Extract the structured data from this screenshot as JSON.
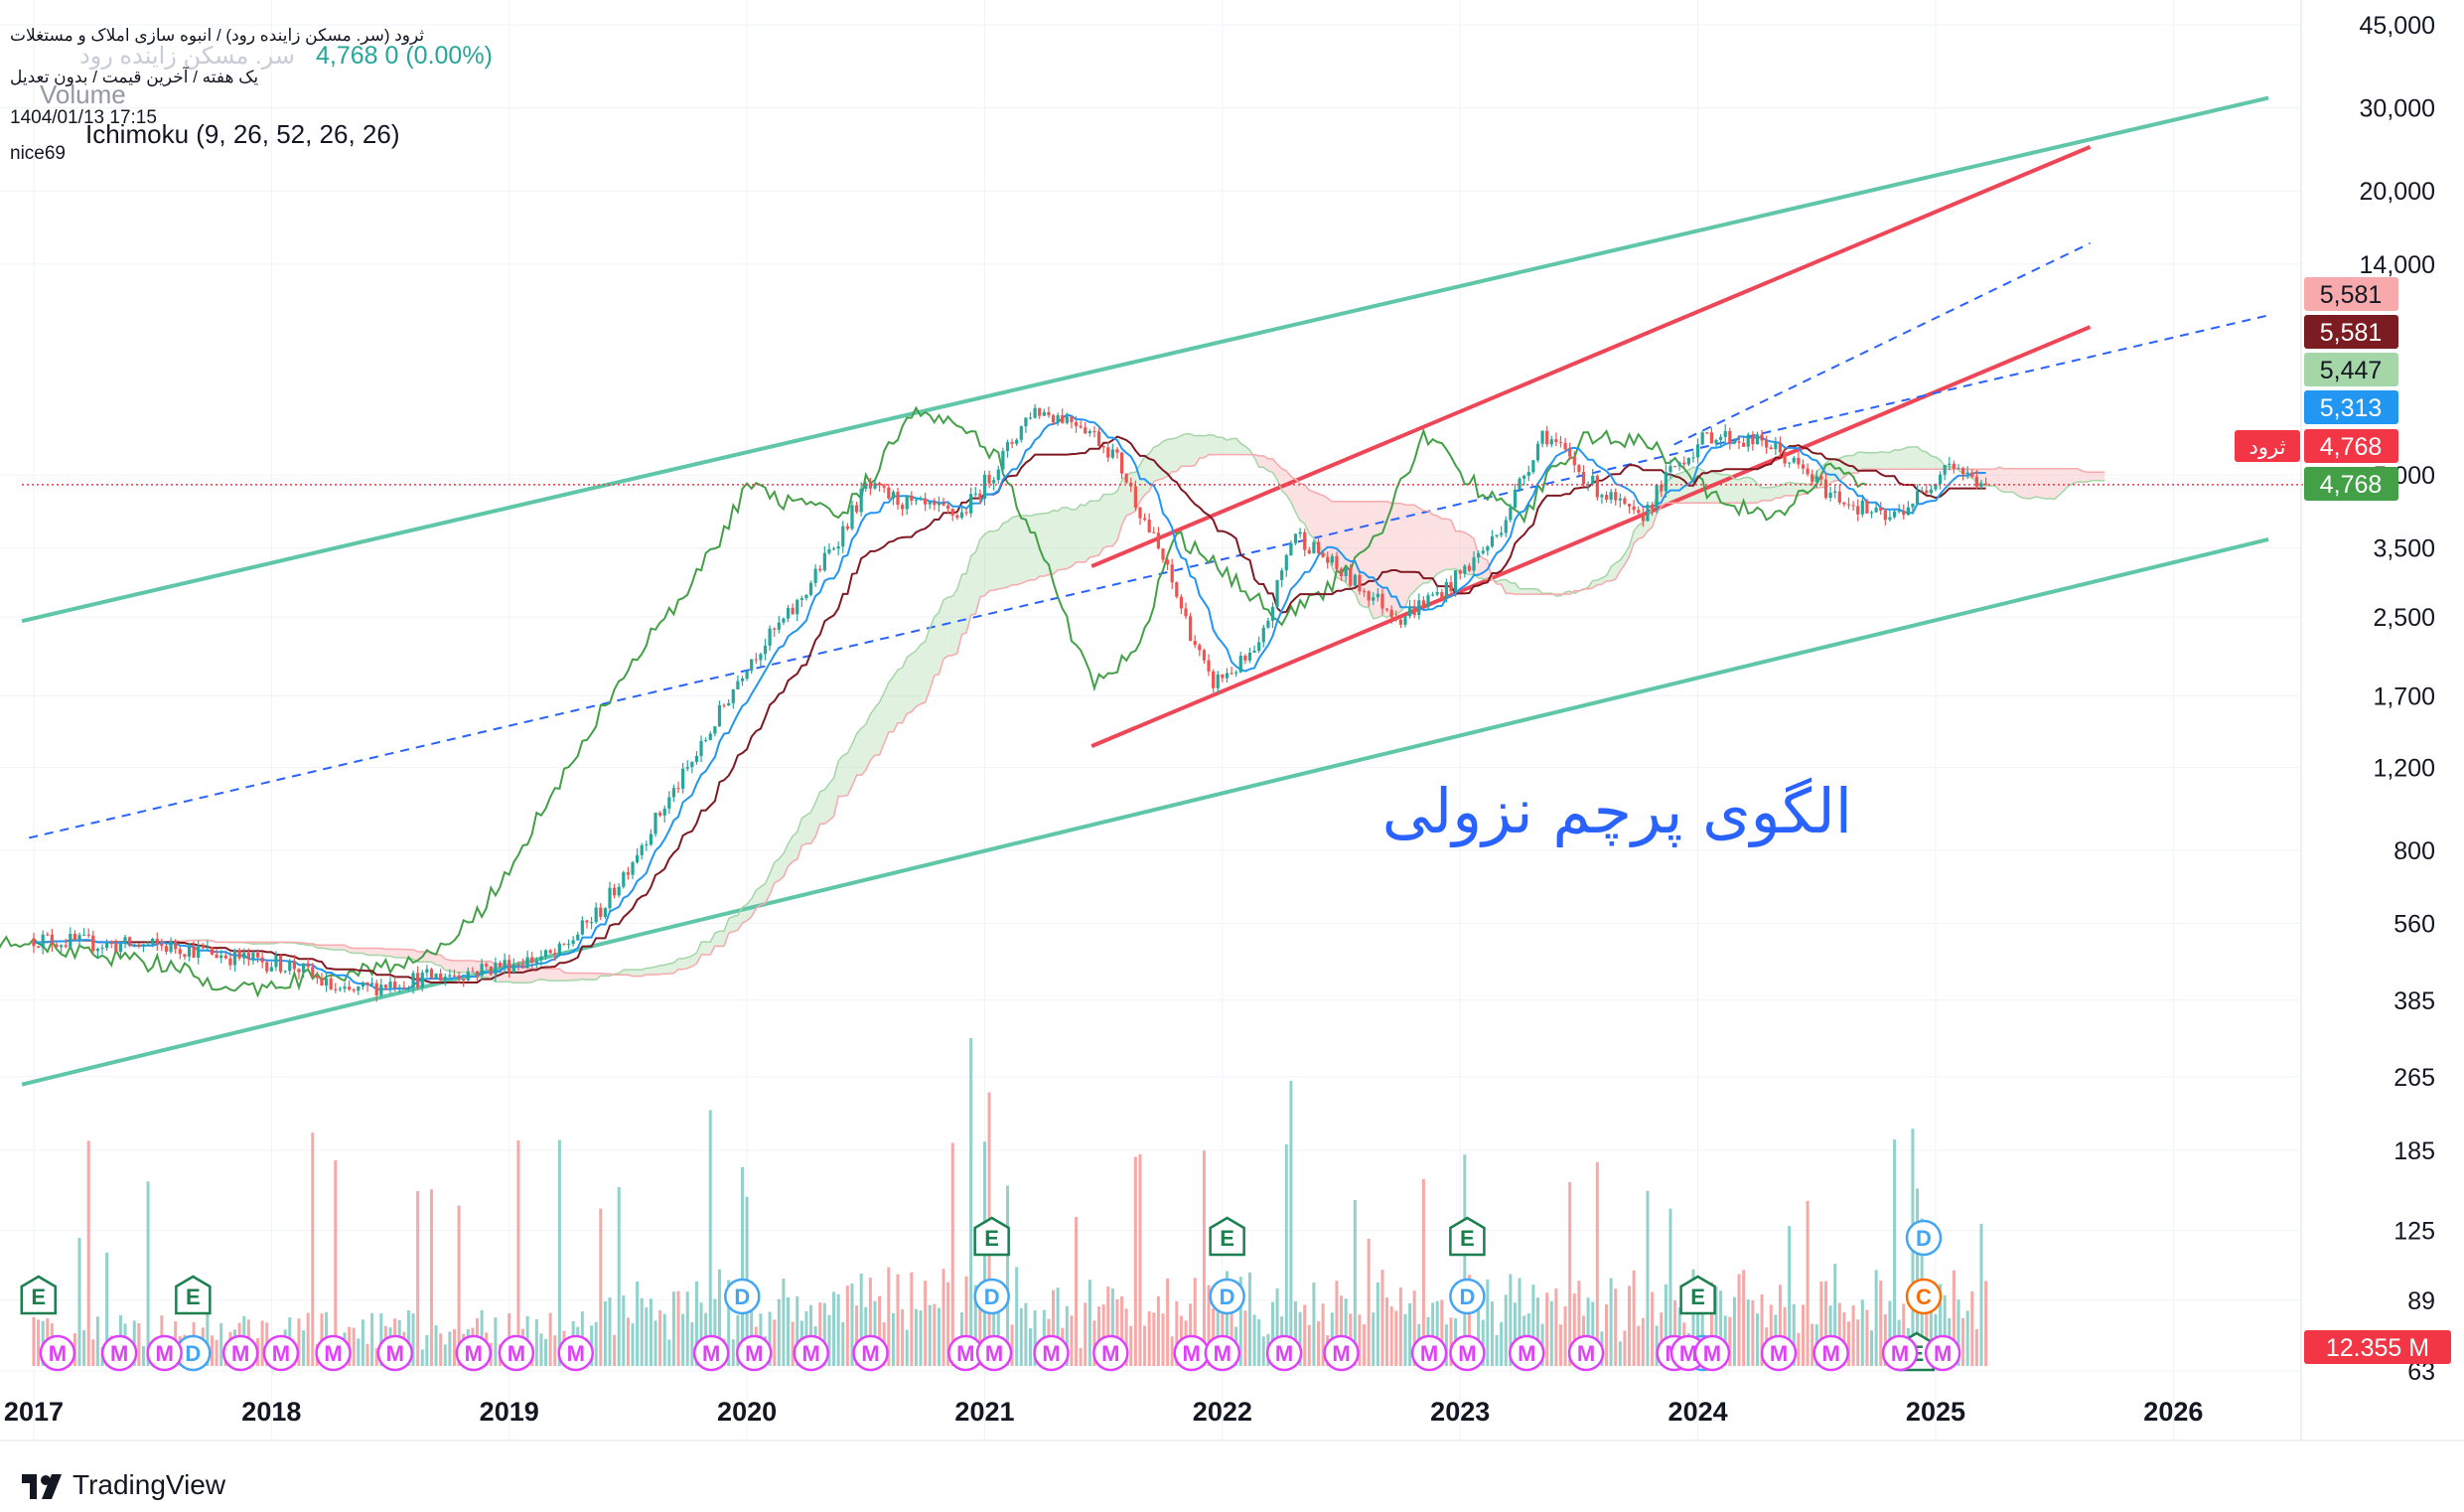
{
  "header": {
    "symbol_line": "ثرود (سر. مسکن زاینده رود) / انبوه سازی املاک و مستغلات",
    "ghost_symbol": "سر. مسکن زاینده رود",
    "price_change": "4,768  0 (0.00%)",
    "settings_line": "یک هفته / آخرین قیمت / بدون تعدیل",
    "datetime": "1404/01/13 17:15",
    "volume_label": "Volume",
    "ichimoku_label": "Ichimoku (9, 26, 52, 26, 26)",
    "author": "nice69"
  },
  "annotation": {
    "pattern_text": "الگوی پرچم نزولی"
  },
  "price_tags": [
    {
      "label": "5,581",
      "value": 5581,
      "color": "#f7a9ab",
      "text_color": "#131722"
    },
    {
      "label": "5,581",
      "value": 5581,
      "color": "#7b1c23",
      "text_color": "#ffffff"
    },
    {
      "label": "5,447",
      "value": 5447,
      "color": "#a5d6a7",
      "text_color": "#131722"
    },
    {
      "label": "5,313",
      "value": 5313,
      "color": "#2196f3",
      "text_color": "#ffffff"
    },
    {
      "label": "4,768",
      "value": 4768,
      "color": "#f23645",
      "text_color": "#ffffff"
    },
    {
      "label": "4,768",
      "value": 4768,
      "color": "#43a047",
      "text_color": "#ffffff"
    }
  ],
  "symbol_badge": "ثرود",
  "volume_tag": "12.355 M",
  "event_markers": [
    {
      "letter": "E",
      "year": 2017.02,
      "row": 1,
      "kind": "earnings"
    },
    {
      "letter": "E",
      "year": 2017.67,
      "row": 1,
      "kind": "earnings"
    },
    {
      "letter": "E",
      "year": 2021.03,
      "row": 2,
      "kind": "earnings"
    },
    {
      "letter": "E",
      "year": 2022.02,
      "row": 2,
      "kind": "earnings"
    },
    {
      "letter": "E",
      "year": 2023.03,
      "row": 2,
      "kind": "earnings"
    },
    {
      "letter": "E",
      "year": 2024.0,
      "row": 1,
      "kind": "earnings"
    },
    {
      "letter": "E",
      "year": 2024.92,
      "row": 0,
      "kind": "earnings"
    },
    {
      "letter": "D",
      "year": 2017.67,
      "row": 0,
      "kind": "dividend"
    },
    {
      "letter": "D",
      "year": 2019.98,
      "row": 1,
      "kind": "dividend"
    },
    {
      "letter": "D",
      "year": 2021.03,
      "row": 1,
      "kind": "dividend"
    },
    {
      "letter": "D",
      "year": 2022.02,
      "row": 1,
      "kind": "dividend"
    },
    {
      "letter": "D",
      "year": 2023.03,
      "row": 1,
      "kind": "dividend"
    },
    {
      "letter": "D",
      "year": 2024.02,
      "row": 0,
      "kind": "dividend"
    },
    {
      "letter": "D",
      "year": 2024.95,
      "row": 2,
      "kind": "dividend"
    },
    {
      "letter": "C",
      "year": 2024.95,
      "row": 1,
      "kind": "split"
    },
    {
      "letter": "M",
      "year": 2017.1,
      "row": 0,
      "kind": "meeting"
    },
    {
      "letter": "M",
      "year": 2017.36,
      "row": 0,
      "kind": "meeting"
    },
    {
      "letter": "M",
      "year": 2017.55,
      "row": 0,
      "kind": "meeting"
    },
    {
      "letter": "M",
      "year": 2017.87,
      "row": 0,
      "kind": "meeting"
    },
    {
      "letter": "M",
      "year": 2018.04,
      "row": 0,
      "kind": "meeting"
    },
    {
      "letter": "M",
      "year": 2018.26,
      "row": 0,
      "kind": "meeting"
    },
    {
      "letter": "M",
      "year": 2018.52,
      "row": 0,
      "kind": "meeting"
    },
    {
      "letter": "M",
      "year": 2018.85,
      "row": 0,
      "kind": "meeting"
    },
    {
      "letter": "M",
      "year": 2019.03,
      "row": 0,
      "kind": "meeting"
    },
    {
      "letter": "M",
      "year": 2019.28,
      "row": 0,
      "kind": "meeting"
    },
    {
      "letter": "M",
      "year": 2019.85,
      "row": 0,
      "kind": "meeting"
    },
    {
      "letter": "M",
      "year": 2020.03,
      "row": 0,
      "kind": "meeting"
    },
    {
      "letter": "M",
      "year": 2020.27,
      "row": 0,
      "kind": "meeting"
    },
    {
      "letter": "M",
      "year": 2020.52,
      "row": 0,
      "kind": "meeting"
    },
    {
      "letter": "M",
      "year": 2020.92,
      "row": 0,
      "kind": "meeting"
    },
    {
      "letter": "M",
      "year": 2021.04,
      "row": 0,
      "kind": "meeting"
    },
    {
      "letter": "M",
      "year": 2021.28,
      "row": 0,
      "kind": "meeting"
    },
    {
      "letter": "M",
      "year": 2021.53,
      "row": 0,
      "kind": "meeting"
    },
    {
      "letter": "M",
      "year": 2021.87,
      "row": 0,
      "kind": "meeting"
    },
    {
      "letter": "M",
      "year": 2022.0,
      "row": 0,
      "kind": "meeting"
    },
    {
      "letter": "M",
      "year": 2022.26,
      "row": 0,
      "kind": "meeting"
    },
    {
      "letter": "M",
      "year": 2022.5,
      "row": 0,
      "kind": "meeting"
    },
    {
      "letter": "M",
      "year": 2022.87,
      "row": 0,
      "kind": "meeting"
    },
    {
      "letter": "M",
      "year": 2023.03,
      "row": 0,
      "kind": "meeting"
    },
    {
      "letter": "M",
      "year": 2023.28,
      "row": 0,
      "kind": "meeting"
    },
    {
      "letter": "M",
      "year": 2023.53,
      "row": 0,
      "kind": "meeting"
    },
    {
      "letter": "M",
      "year": 2023.9,
      "row": 0,
      "kind": "meeting"
    },
    {
      "letter": "M",
      "year": 2023.96,
      "row": 0,
      "kind": "meeting"
    },
    {
      "letter": "M",
      "year": 2024.06,
      "row": 0,
      "kind": "meeting"
    },
    {
      "letter": "M",
      "year": 2024.34,
      "row": 0,
      "kind": "meeting"
    },
    {
      "letter": "M",
      "year": 2024.56,
      "row": 0,
      "kind": "meeting"
    },
    {
      "letter": "M",
      "year": 2024.85,
      "row": 0,
      "kind": "meeting"
    },
    {
      "letter": "M",
      "year": 2025.03,
      "row": 0,
      "kind": "meeting"
    }
  ],
  "colors": {
    "up": "#26a69a",
    "down": "#ef5350",
    "tenkan": "#2196f3",
    "kijun": "#801922",
    "chikou": "#43a047",
    "channel": "#5fc7a8",
    "flag": "#ef4657",
    "dashed": "#2962ff",
    "cloud_up": "#a5d6a7",
    "cloud_down": "#f7a9ab",
    "grid": "#f0f3fa",
    "meeting": "#e040fb",
    "dividend": "#42a5f5",
    "earnings": "#1b7f4f",
    "split": "#ff6d00"
  },
  "chart_data": {
    "type": "candlestick",
    "timeframe": "weekly",
    "log_scale": true,
    "x_ticks": [
      "2017",
      "2018",
      "2019",
      "2020",
      "2021",
      "2022",
      "2023",
      "2024",
      "2025",
      "2026"
    ],
    "y_ticks": [
      "45,000",
      "30,000",
      "20,000",
      "14,000",
      "5,000",
      "3,500",
      "2,500",
      "1,700",
      "1,200",
      "800",
      "560",
      "385",
      "265",
      "185",
      "125",
      "89",
      "63"
    ],
    "xlim": [
      2016.95,
      2026.55
    ],
    "ylim_log": [
      63,
      45000
    ],
    "last_price": 4768,
    "price_keypoints": [
      [
        2017.0,
        520
      ],
      [
        2017.3,
        505
      ],
      [
        2017.6,
        500
      ],
      [
        2017.9,
        470
      ],
      [
        2018.1,
        455
      ],
      [
        2018.3,
        395
      ],
      [
        2018.5,
        420
      ],
      [
        2018.8,
        440
      ],
      [
        2019.0,
        460
      ],
      [
        2019.2,
        480
      ],
      [
        2019.4,
        610
      ],
      [
        2019.6,
        900
      ],
      [
        2019.8,
        1300
      ],
      [
        2020.0,
        2000
      ],
      [
        2020.2,
        2600
      ],
      [
        2020.4,
        3800
      ],
      [
        2020.5,
        4700
      ],
      [
        2020.7,
        4300
      ],
      [
        2020.9,
        4100
      ],
      [
        2021.05,
        5200
      ],
      [
        2021.2,
        6900
      ],
      [
        2021.4,
        6500
      ],
      [
        2021.55,
        5500
      ],
      [
        2021.75,
        3300
      ],
      [
        2021.95,
        1800
      ],
      [
        2022.15,
        2100
      ],
      [
        2022.3,
        3800
      ],
      [
        2022.5,
        3100
      ],
      [
        2022.75,
        2500
      ],
      [
        2022.95,
        2900
      ],
      [
        2023.15,
        3700
      ],
      [
        2023.35,
        6200
      ],
      [
        2023.55,
        4800
      ],
      [
        2023.75,
        4000
      ],
      [
        2023.9,
        5200
      ],
      [
        2024.05,
        6100
      ],
      [
        2024.3,
        5800
      ],
      [
        2024.55,
        4600
      ],
      [
        2024.8,
        4000
      ],
      [
        2024.95,
        4600
      ],
      [
        2025.05,
        5400
      ],
      [
        2025.15,
        4900
      ],
      [
        2025.22,
        4768
      ]
    ],
    "trend_lines": [
      {
        "name": "channel-top",
        "kind": "channel",
        "from": [
          2016.95,
          2450
        ],
        "to": [
          2026.4,
          31500
        ]
      },
      {
        "name": "channel-bottom",
        "kind": "channel",
        "from": [
          2016.95,
          255
        ],
        "to": [
          2026.4,
          3650
        ]
      },
      {
        "name": "flag-top",
        "kind": "flag",
        "from": [
          2021.45,
          3200
        ],
        "to": [
          2025.65,
          24800
        ]
      },
      {
        "name": "flag-bottom",
        "kind": "flag",
        "from": [
          2021.45,
          1330
        ],
        "to": [
          2025.65,
          10300
        ]
      },
      {
        "name": "dashed-main",
        "kind": "dashed",
        "from": [
          2016.98,
          850
        ],
        "to": [
          2026.4,
          10900
        ]
      },
      {
        "name": "dashed-upper",
        "kind": "dashed",
        "from": [
          2023.9,
          5800
        ],
        "to": [
          2025.65,
          15500
        ]
      }
    ]
  }
}
